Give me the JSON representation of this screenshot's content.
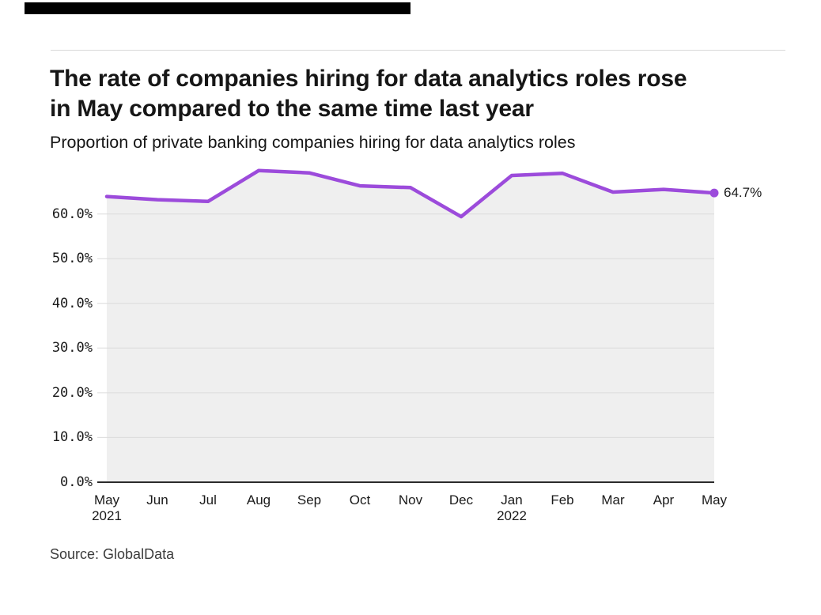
{
  "page": {
    "title_lines": [
      "The rate of companies hiring for data analytics roles rose",
      "in May compared to the same time last year"
    ],
    "subtitle": "Proportion of private banking companies hiring for data analytics roles",
    "source": "Source: GlobalData",
    "brand_bar_color": "#000000"
  },
  "chart_data": {
    "type": "line",
    "title": "The rate of companies hiring for data analytics roles rose in May compared to the same time last year",
    "subtitle": "Proportion of private banking companies hiring for data analytics roles",
    "categories": [
      "May",
      "Jun",
      "Jul",
      "Aug",
      "Sep",
      "Oct",
      "Nov",
      "Dec",
      "Jan",
      "Feb",
      "Mar",
      "Apr",
      "May"
    ],
    "category_year_labels": [
      {
        "index": 0,
        "year": "2021"
      },
      {
        "index": 8,
        "year": "2022"
      }
    ],
    "series": [
      {
        "name": "Proportion of private banking companies hiring for data analytics roles",
        "values": [
          63.9,
          63.2,
          62.8,
          69.7,
          69.2,
          66.3,
          65.9,
          59.4,
          68.6,
          69.1,
          64.9,
          65.5,
          64.7
        ]
      }
    ],
    "end_point_label": "64.7%",
    "ylim": [
      0,
      70
    ],
    "ytick_values": [
      0,
      10,
      20,
      30,
      40,
      50,
      60
    ],
    "ytick_labels": [
      "0.0%",
      "10.0%",
      "20.0%",
      "30.0%",
      "40.0%",
      "50.0%",
      "60.0%"
    ],
    "xlabel": "",
    "ylabel": "",
    "grid": true,
    "legend_position": "none",
    "line_color": "#9C4BDB",
    "marker_color": "#9C4BDB",
    "area_fill_color": "#EFEFEF",
    "gridline_color": "#DCDCDC",
    "axis_line_color": "#2B2B2B"
  }
}
